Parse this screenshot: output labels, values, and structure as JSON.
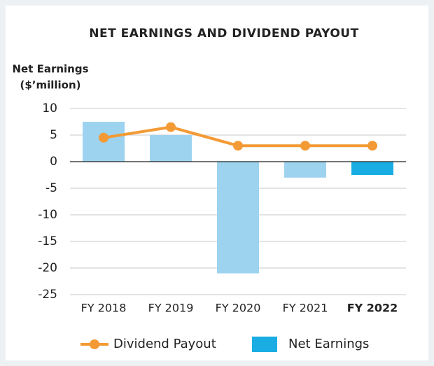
{
  "chart_data": {
    "type": "bar_line",
    "title": "NET EARNINGS AND DIVIDEND PAYOUT",
    "y_label": [
      "Net Earnings",
      "($’million)"
    ],
    "categories": [
      "FY 2018",
      "FY 2019",
      "FY 2020",
      "FY 2021",
      "FY 2022"
    ],
    "highlight": "FY 2022",
    "series": [
      {
        "name": "Dividend Payout",
        "type": "line",
        "color": "#f39a35",
        "values": [
          4.5,
          6.5,
          3,
          3,
          3
        ]
      },
      {
        "name": "Net Earnings",
        "type": "bar",
        "color": "#1aade3",
        "bar_colors": [
          "#9dd3ef",
          "#9dd3ef",
          "#9dd3ef",
          "#9dd3ef",
          "#1aade3"
        ],
        "values": [
          7.5,
          5,
          -21,
          -3,
          -2.5
        ]
      }
    ],
    "ylim": [
      -25,
      10
    ],
    "yticks": [
      10,
      5,
      0,
      -5,
      -10,
      -15,
      -20,
      -25
    ],
    "grid": true,
    "legend": "bottom"
  }
}
